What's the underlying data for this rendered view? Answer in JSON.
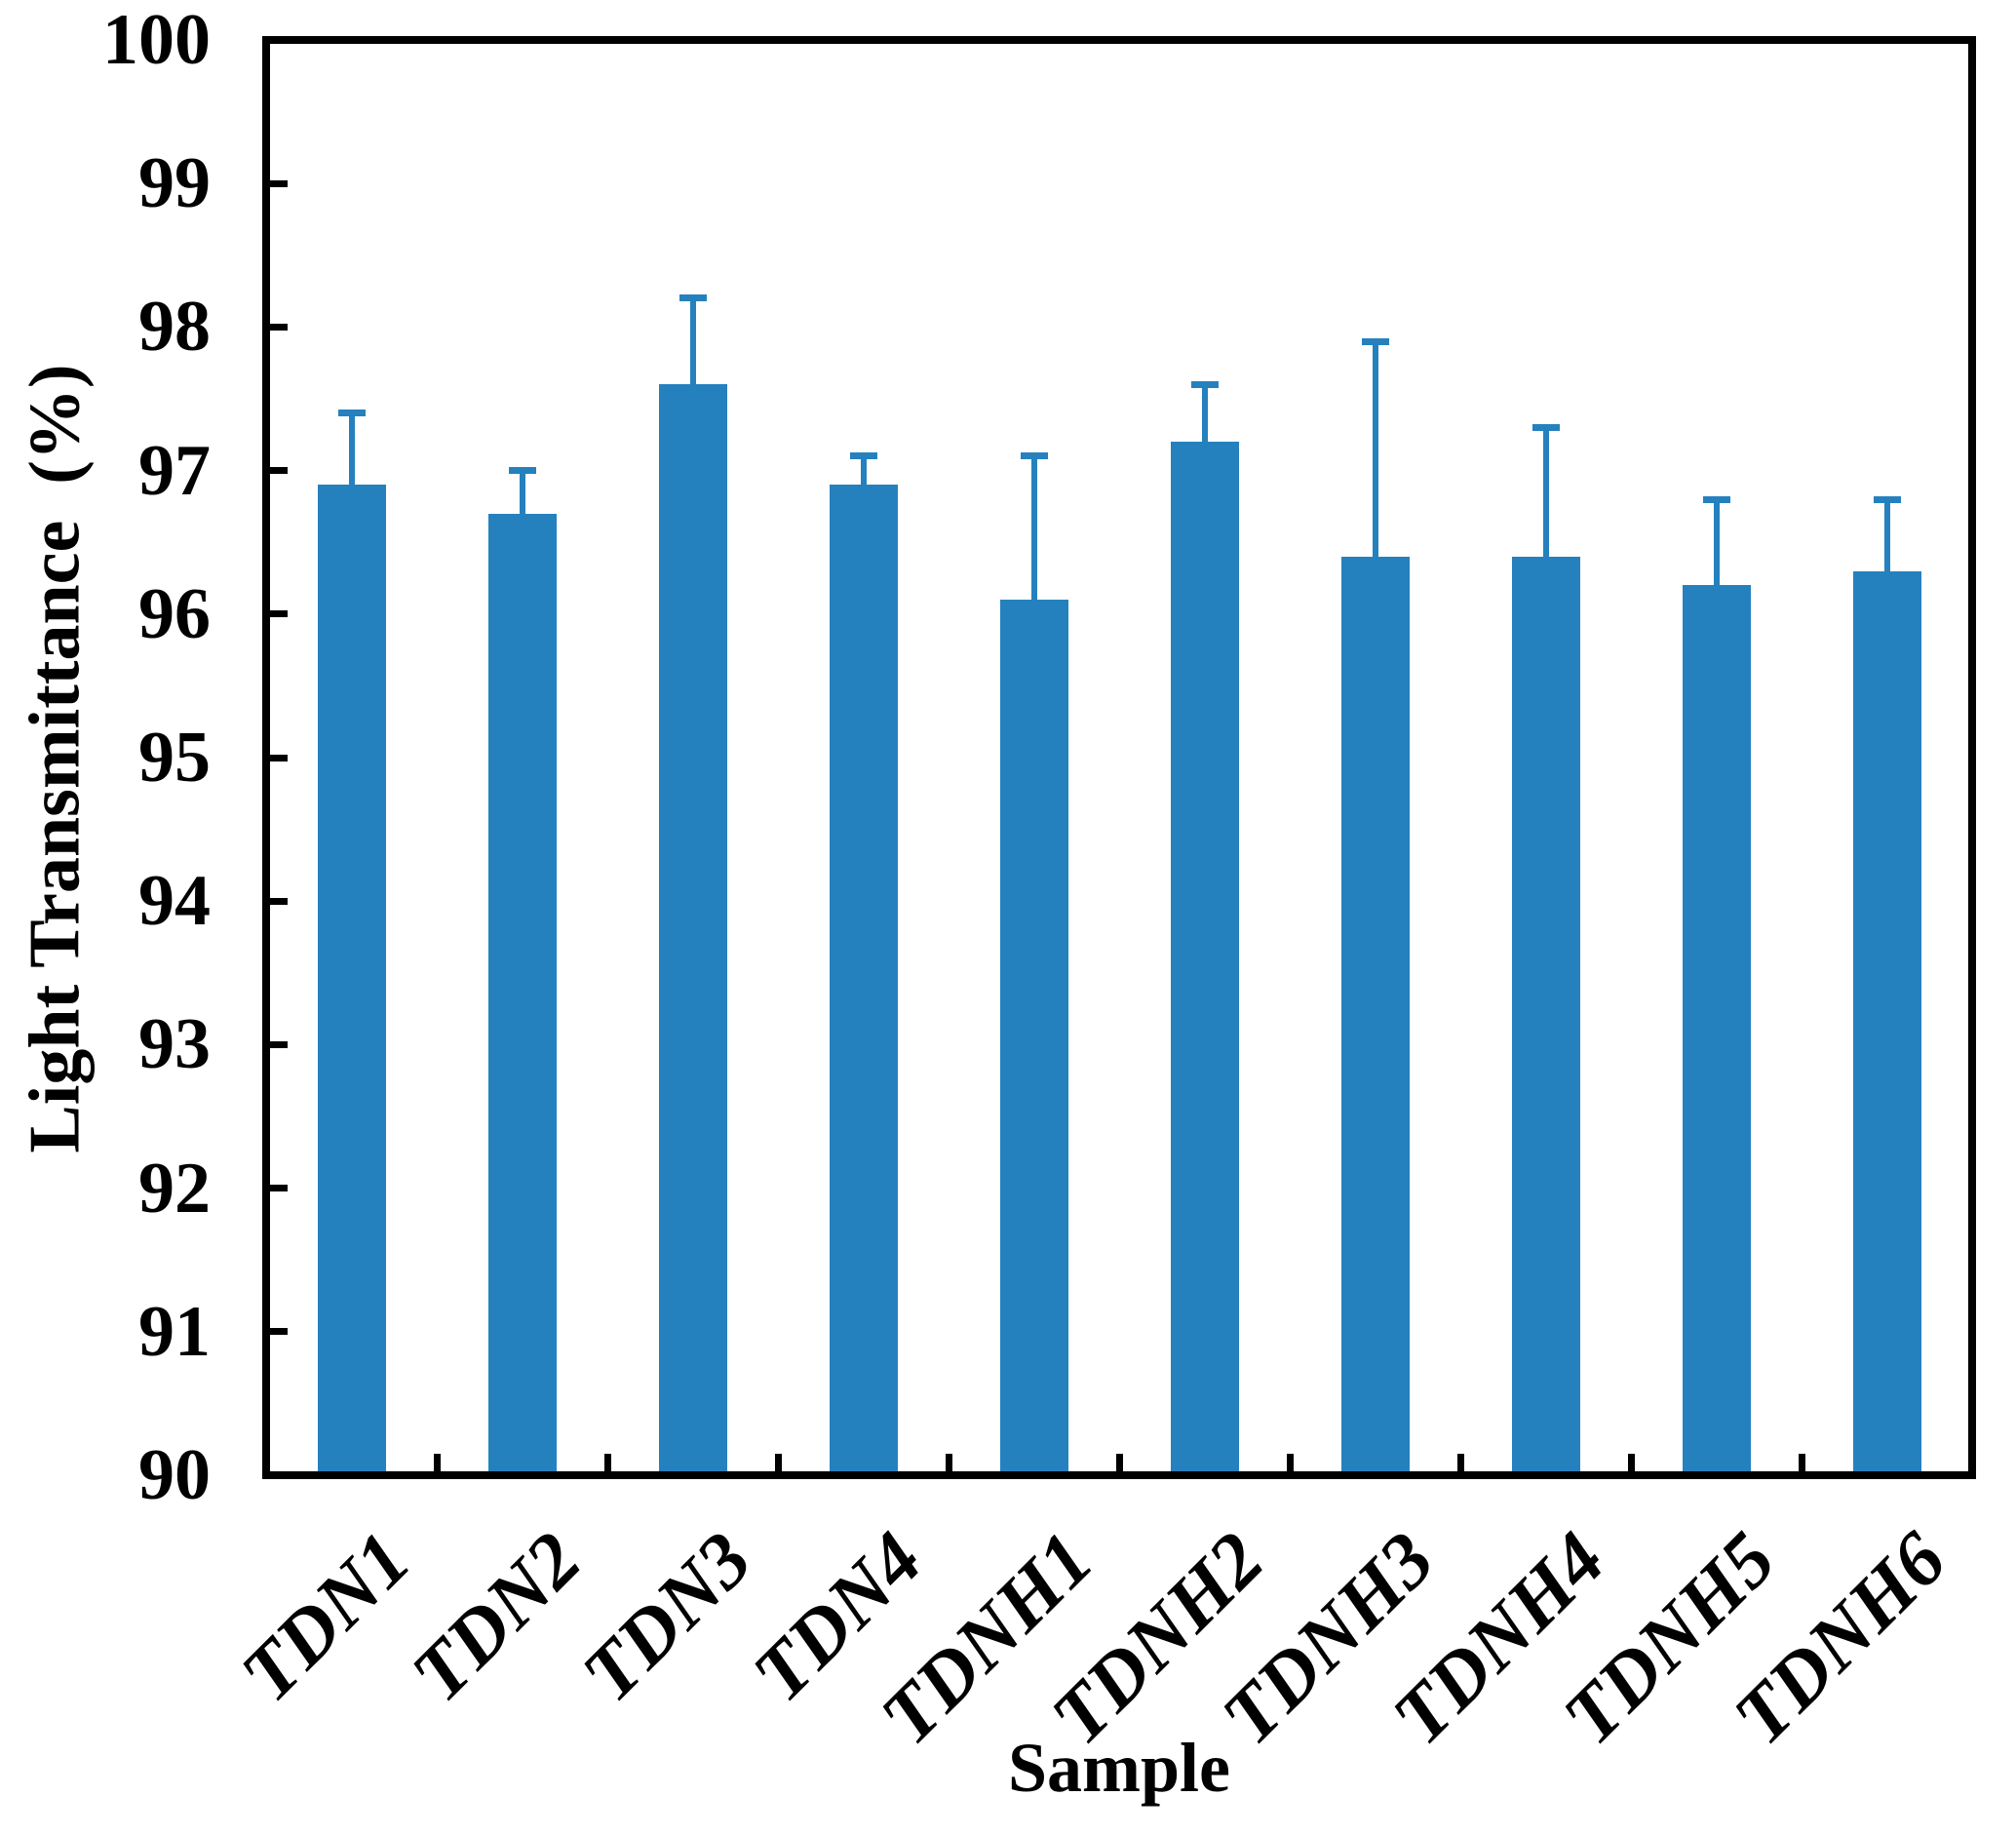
{
  "chart_data": {
    "type": "bar",
    "title": "",
    "xlabel": "Sample",
    "ylabel": "Light Transmittance  (%)",
    "categories": [
      "TDN1",
      "TDN2",
      "TDN3",
      "TDN4",
      "TDNH1",
      "TDNH2",
      "TDNH3",
      "TDNH4",
      "TDNH5",
      "TDNH6"
    ],
    "values": [
      96.9,
      96.7,
      97.6,
      96.9,
      96.1,
      97.2,
      96.4,
      96.4,
      96.2,
      96.3
    ],
    "error_plus": [
      0.5,
      0.3,
      0.6,
      0.2,
      1.0,
      0.4,
      1.5,
      0.9,
      0.6,
      0.5
    ],
    "error_tops": [
      97.4,
      97.0,
      98.2,
      97.1,
      97.1,
      97.6,
      97.9,
      97.3,
      96.8,
      96.8
    ],
    "ylim": [
      90,
      100
    ],
    "yticks": [
      90,
      91,
      92,
      93,
      94,
      95,
      96,
      97,
      98,
      99,
      100
    ],
    "ytick_step": 1,
    "grid": false,
    "legend": null,
    "tick_style": "inward, x ticks at category boundaries",
    "bar_color": "#2581BE",
    "axis_color": "#000000",
    "background_color": "#FFFFFF"
  }
}
